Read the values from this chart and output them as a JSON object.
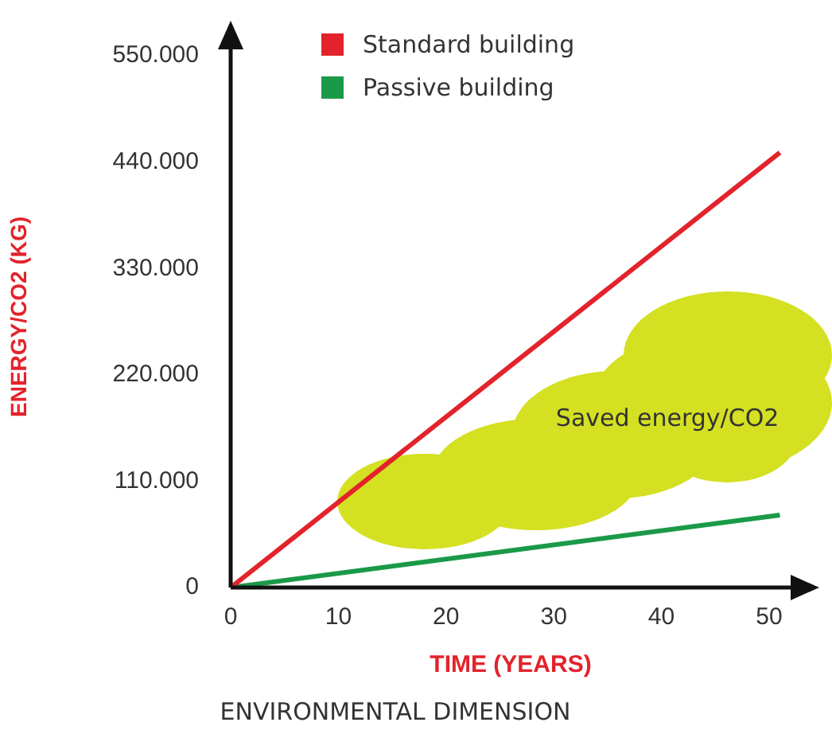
{
  "chart_data": {
    "type": "line",
    "title": "ENVIRONMENTAL DIMENSION",
    "xlabel": "TIME (YEARS)",
    "ylabel": "ENERGY/CO2 (KG)",
    "x": [
      0,
      51
    ],
    "series": [
      {
        "name": "Standard building",
        "color": "#e3232b",
        "values": [
          0,
          450000
        ]
      },
      {
        "name": "Passive building",
        "color": "#1a9a48",
        "values": [
          0,
          75000
        ]
      }
    ],
    "xlim": [
      0,
      52
    ],
    "xticks": [
      0,
      10,
      20,
      30,
      40,
      50
    ],
    "ylim": [
      0,
      560000
    ],
    "yticks": [
      {
        "value": 0,
        "label": "0"
      },
      {
        "value": 110000,
        "label": "110.000"
      },
      {
        "value": 220000,
        "label": "220.000"
      },
      {
        "value": 330000,
        "label": "330.000"
      },
      {
        "value": 440000,
        "label": "440.000"
      },
      {
        "value": 550000,
        "label": "550.000"
      }
    ],
    "annotations": [
      "Saved energy/CO2"
    ],
    "grid": false,
    "legend": "top",
    "marker": "none",
    "line_style": "solid"
  }
}
